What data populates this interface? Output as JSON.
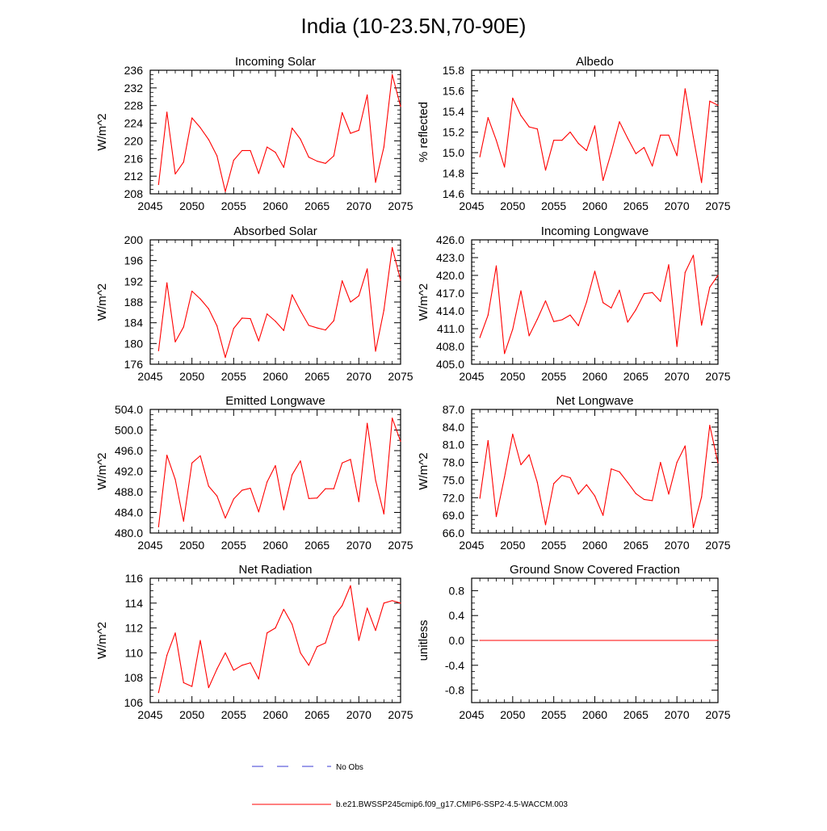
{
  "title": "India (10-23.5N,70-90E)",
  "legend": {
    "placement": "bottom-center",
    "entries": [
      {
        "label": "No Obs",
        "color": "#3b3bd6",
        "style": "dashed"
      },
      {
        "label": "b.e21.BWSSP245cmip6.f09_g17.CMIP6-SSP2-4.5-WACCM.003",
        "color": "#ff0000",
        "style": "solid"
      }
    ]
  },
  "chart_data": [
    {
      "type": "line",
      "title": "Incoming Solar",
      "ylabel": "W/m^2",
      "xlim": [
        2045,
        2075
      ],
      "ylim": [
        208,
        236
      ],
      "yticks": [
        208,
        212,
        216,
        220,
        224,
        228,
        232,
        236
      ],
      "ytick_labels": [
        "208",
        "212",
        "216",
        "220",
        "224",
        "228",
        "232",
        "236"
      ],
      "xticks": [
        2045,
        2050,
        2055,
        2060,
        2065,
        2070,
        2075
      ],
      "xtick_labels": [
        "2045",
        "2050",
        "2055",
        "2060",
        "2065",
        "2070",
        "2075"
      ],
      "grid": false,
      "series": [
        {
          "color": "#ff0000",
          "x": [
            2046,
            2047,
            2048,
            2049,
            2050,
            2051,
            2052,
            2053,
            2054,
            2055,
            2056,
            2057,
            2058,
            2059,
            2060,
            2061,
            2062,
            2063,
            2064,
            2065,
            2066,
            2067,
            2068,
            2069,
            2070,
            2071,
            2072,
            2073,
            2074,
            2075
          ],
          "y": [
            210.1,
            226.5,
            212.5,
            215.2,
            225.2,
            223.0,
            220.3,
            216.6,
            208.5,
            215.6,
            217.8,
            217.8,
            212.6,
            218.6,
            217.4,
            214.0,
            222.9,
            220.4,
            216.3,
            215.4,
            214.9,
            216.6,
            226.4,
            221.7,
            222.4,
            230.4,
            210.6,
            218.6,
            235.0,
            227.8
          ]
        }
      ]
    },
    {
      "type": "line",
      "title": "Albedo",
      "ylabel": "% reflected",
      "xlim": [
        2045,
        2075
      ],
      "ylim": [
        14.6,
        15.8
      ],
      "yticks": [
        14.6,
        14.8,
        15.0,
        15.2,
        15.4,
        15.6,
        15.8
      ],
      "ytick_labels": [
        "14.6",
        "14.8",
        "15.0",
        "15.2",
        "15.4",
        "15.6",
        "15.8"
      ],
      "xticks": [
        2045,
        2050,
        2055,
        2060,
        2065,
        2070,
        2075
      ],
      "xtick_labels": [
        "2045",
        "2050",
        "2055",
        "2060",
        "2065",
        "2070",
        "2075"
      ],
      "grid": false,
      "series": [
        {
          "color": "#ff0000",
          "x": [
            2046,
            2047,
            2048,
            2049,
            2050,
            2051,
            2052,
            2053,
            2054,
            2055,
            2056,
            2057,
            2058,
            2059,
            2060,
            2061,
            2062,
            2063,
            2064,
            2065,
            2066,
            2067,
            2068,
            2069,
            2070,
            2071,
            2072,
            2073,
            2074,
            2075
          ],
          "y": [
            14.96,
            15.34,
            15.12,
            14.86,
            15.53,
            15.36,
            15.25,
            15.23,
            14.83,
            15.12,
            15.12,
            15.2,
            15.09,
            15.02,
            15.26,
            14.73,
            15.0,
            15.3,
            15.14,
            14.99,
            15.05,
            14.87,
            15.17,
            15.17,
            14.97,
            15.62,
            15.15,
            14.71,
            15.5,
            15.46
          ]
        }
      ]
    },
    {
      "type": "line",
      "title": "Absorbed Solar",
      "ylabel": "W/m^2",
      "xlim": [
        2045,
        2075
      ],
      "ylim": [
        176,
        200
      ],
      "yticks": [
        176,
        180,
        184,
        188,
        192,
        196,
        200
      ],
      "ytick_labels": [
        "176",
        "180",
        "184",
        "188",
        "192",
        "196",
        "200"
      ],
      "xticks": [
        2045,
        2050,
        2055,
        2060,
        2065,
        2070,
        2075
      ],
      "xtick_labels": [
        "2045",
        "2050",
        "2055",
        "2060",
        "2065",
        "2070",
        "2075"
      ],
      "grid": false,
      "series": [
        {
          "color": "#ff0000",
          "x": [
            2046,
            2047,
            2048,
            2049,
            2050,
            2051,
            2052,
            2053,
            2054,
            2055,
            2056,
            2057,
            2058,
            2059,
            2060,
            2061,
            2062,
            2063,
            2064,
            2065,
            2066,
            2067,
            2068,
            2069,
            2070,
            2071,
            2072,
            2073,
            2074,
            2075
          ],
          "y": [
            178.6,
            191.7,
            180.3,
            183.2,
            190.1,
            188.6,
            186.7,
            183.4,
            177.3,
            182.9,
            184.9,
            184.8,
            180.5,
            185.7,
            184.3,
            182.5,
            189.4,
            186.3,
            183.5,
            183.0,
            182.6,
            184.4,
            192.1,
            188.0,
            189.2,
            194.4,
            178.5,
            186.4,
            198.5,
            192.2
          ]
        }
      ]
    },
    {
      "type": "line",
      "title": "Incoming Longwave",
      "ylabel": "W/m^2",
      "xlim": [
        2045,
        2075
      ],
      "ylim": [
        405.0,
        426.0
      ],
      "yticks": [
        405,
        408,
        411,
        414,
        417,
        420,
        423,
        426
      ],
      "ytick_labels": [
        "405.0",
        "408.0",
        "411.0",
        "414.0",
        "417.0",
        "420.0",
        "423.0",
        "426.0"
      ],
      "xticks": [
        2045,
        2050,
        2055,
        2060,
        2065,
        2070,
        2075
      ],
      "xtick_labels": [
        "2045",
        "2050",
        "2055",
        "2060",
        "2065",
        "2070",
        "2075"
      ],
      "grid": false,
      "series": [
        {
          "color": "#ff0000",
          "x": [
            2046,
            2047,
            2048,
            2049,
            2050,
            2051,
            2052,
            2053,
            2054,
            2055,
            2056,
            2057,
            2058,
            2059,
            2060,
            2061,
            2062,
            2063,
            2064,
            2065,
            2066,
            2067,
            2068,
            2069,
            2070,
            2071,
            2072,
            2073,
            2074,
            2075
          ],
          "y": [
            409.5,
            413.3,
            421.6,
            406.8,
            410.9,
            417.4,
            409.8,
            412.6,
            415.7,
            412.2,
            412.5,
            413.3,
            411.5,
            415.5,
            420.7,
            415.4,
            414.5,
            417.5,
            412.1,
            414.2,
            416.9,
            417.1,
            415.6,
            421.8,
            408.0,
            420.5,
            423.4,
            411.6,
            418.0,
            420.0
          ]
        }
      ]
    },
    {
      "type": "line",
      "title": "Emitted Longwave",
      "ylabel": "W/m^2",
      "xlim": [
        2045,
        2075
      ],
      "ylim": [
        480.0,
        504.0
      ],
      "yticks": [
        480,
        484,
        488,
        492,
        496,
        500,
        504
      ],
      "ytick_labels": [
        "480.0",
        "484.0",
        "488.0",
        "492.0",
        "496.0",
        "500.0",
        "504.0"
      ],
      "xticks": [
        2045,
        2050,
        2055,
        2060,
        2065,
        2070,
        2075
      ],
      "xtick_labels": [
        "2045",
        "2050",
        "2055",
        "2060",
        "2065",
        "2070",
        "2075"
      ],
      "grid": false,
      "series": [
        {
          "color": "#ff0000",
          "x": [
            2046,
            2047,
            2048,
            2049,
            2050,
            2051,
            2052,
            2053,
            2054,
            2055,
            2056,
            2057,
            2058,
            2059,
            2060,
            2061,
            2062,
            2063,
            2064,
            2065,
            2066,
            2067,
            2068,
            2069,
            2070,
            2071,
            2072,
            2073,
            2074,
            2075
          ],
          "y": [
            481.2,
            495.1,
            490.4,
            482.3,
            493.6,
            495.0,
            489.1,
            487.2,
            482.9,
            486.6,
            488.3,
            488.7,
            484.1,
            489.9,
            493.1,
            484.5,
            491.3,
            494.0,
            486.7,
            486.8,
            488.6,
            488.6,
            493.6,
            494.3,
            486.1,
            501.3,
            490.3,
            483.7,
            502.3,
            497.8
          ]
        }
      ]
    },
    {
      "type": "line",
      "title": "Net Longwave",
      "ylabel": "W/m^2",
      "xlim": [
        2045,
        2075
      ],
      "ylim": [
        66.0,
        87.0
      ],
      "yticks": [
        66,
        69,
        72,
        75,
        78,
        81,
        84,
        87
      ],
      "ytick_labels": [
        "66.0",
        "69.0",
        "72.0",
        "75.0",
        "78.0",
        "81.0",
        "84.0",
        "87.0"
      ],
      "xticks": [
        2045,
        2050,
        2055,
        2060,
        2065,
        2070,
        2075
      ],
      "xtick_labels": [
        "2045",
        "2050",
        "2055",
        "2060",
        "2065",
        "2070",
        "2075"
      ],
      "grid": false,
      "series": [
        {
          "color": "#ff0000",
          "x": [
            2046,
            2047,
            2048,
            2049,
            2050,
            2051,
            2052,
            2053,
            2054,
            2055,
            2056,
            2057,
            2058,
            2059,
            2060,
            2061,
            2062,
            2063,
            2064,
            2065,
            2066,
            2067,
            2068,
            2069,
            2070,
            2071,
            2072,
            2073,
            2074,
            2075
          ],
          "y": [
            71.9,
            81.7,
            68.8,
            75.5,
            82.8,
            77.6,
            79.3,
            74.6,
            67.4,
            74.4,
            75.8,
            75.4,
            72.6,
            74.2,
            72.3,
            69.0,
            76.9,
            76.4,
            74.6,
            72.7,
            71.7,
            71.5,
            78.0,
            72.6,
            78.0,
            80.8,
            66.9,
            72.1,
            84.3,
            77.9
          ]
        }
      ]
    },
    {
      "type": "line",
      "title": "Net Radiation",
      "ylabel": "W/m^2",
      "xlim": [
        2045,
        2075
      ],
      "ylim": [
        106,
        116
      ],
      "yticks": [
        106,
        108,
        110,
        112,
        114,
        116
      ],
      "ytick_labels": [
        "106",
        "108",
        "110",
        "112",
        "114",
        "116"
      ],
      "xticks": [
        2045,
        2050,
        2055,
        2060,
        2065,
        2070,
        2075
      ],
      "xtick_labels": [
        "2045",
        "2050",
        "2055",
        "2060",
        "2065",
        "2070",
        "2075"
      ],
      "grid": false,
      "series": [
        {
          "color": "#ff0000",
          "x": [
            2046,
            2047,
            2048,
            2049,
            2050,
            2051,
            2052,
            2053,
            2054,
            2055,
            2056,
            2057,
            2058,
            2059,
            2060,
            2061,
            2062,
            2063,
            2064,
            2065,
            2066,
            2067,
            2068,
            2069,
            2070,
            2071,
            2072,
            2073,
            2074,
            2075
          ],
          "y": [
            106.8,
            109.8,
            111.6,
            107.6,
            107.3,
            111.0,
            107.2,
            108.7,
            110.0,
            108.6,
            109.0,
            109.2,
            107.9,
            111.6,
            112.0,
            113.5,
            112.3,
            110.0,
            109.0,
            110.5,
            110.8,
            112.9,
            113.8,
            115.4,
            111.0,
            113.6,
            111.8,
            114.0,
            114.2,
            114.0
          ]
        }
      ]
    },
    {
      "type": "line",
      "title": "Ground Snow Covered Fraction",
      "ylabel": "unitless",
      "xlim": [
        2045,
        2075
      ],
      "ylim": [
        -1.0,
        1.0
      ],
      "yticks": [
        -0.8,
        -0.4,
        0.0,
        0.4,
        0.8
      ],
      "ytick_labels": [
        "-0.8",
        "-0.4",
        "0.0",
        "0.4",
        "0.8"
      ],
      "xticks": [
        2045,
        2050,
        2055,
        2060,
        2065,
        2070,
        2075
      ],
      "xtick_labels": [
        "2045",
        "2050",
        "2055",
        "2060",
        "2065",
        "2070",
        "2075"
      ],
      "grid": false,
      "series": [
        {
          "color": "#ff0000",
          "x": [
            2046,
            2075
          ],
          "y": [
            0.0,
            0.0
          ]
        }
      ]
    }
  ]
}
